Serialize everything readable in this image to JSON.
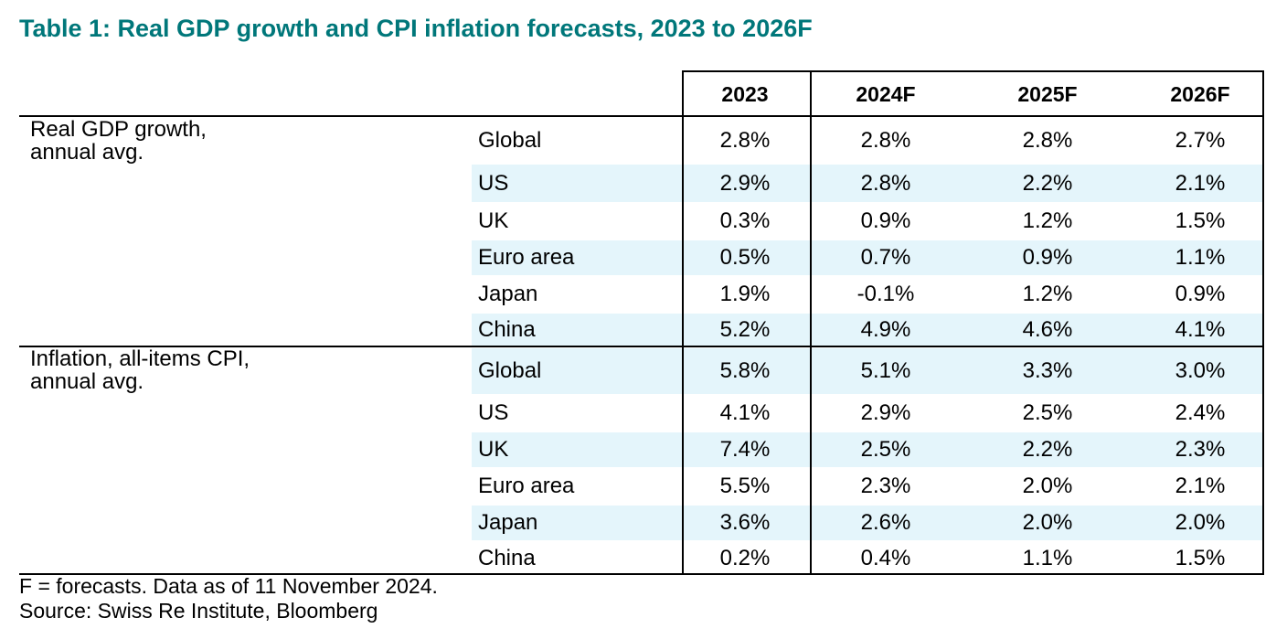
{
  "title": "Table 1: Real GDP growth and CPI inflation forecasts, 2023 to 2026F",
  "chart_data": {
    "type": "table",
    "columns": [
      "2023",
      "2024F",
      "2025F",
      "2026F"
    ],
    "groups": [
      {
        "label_line1": "Real GDP growth,",
        "label_line2": "annual avg.",
        "rows": [
          {
            "name": "Global",
            "values": [
              "2.8%",
              "2.8%",
              "2.8%",
              "2.7%"
            ]
          },
          {
            "name": "US",
            "values": [
              "2.9%",
              "2.8%",
              "2.2%",
              "2.1%"
            ]
          },
          {
            "name": "UK",
            "values": [
              "0.3%",
              "0.9%",
              "1.2%",
              "1.5%"
            ]
          },
          {
            "name": "Euro area",
            "values": [
              "0.5%",
              "0.7%",
              "0.9%",
              "1.1%"
            ]
          },
          {
            "name": "Japan",
            "values": [
              "1.9%",
              "-0.1%",
              "1.2%",
              "0.9%"
            ]
          },
          {
            "name": "China",
            "values": [
              "5.2%",
              "4.9%",
              "4.6%",
              "4.1%"
            ]
          }
        ]
      },
      {
        "label_line1": "Inflation, all-items CPI,",
        "label_line2": "annual avg.",
        "rows": [
          {
            "name": "Global",
            "values": [
              "5.8%",
              "5.1%",
              "3.3%",
              "3.0%"
            ]
          },
          {
            "name": "US",
            "values": [
              "4.1%",
              "2.9%",
              "2.5%",
              "2.4%"
            ]
          },
          {
            "name": "UK",
            "values": [
              "7.4%",
              "2.5%",
              "2.2%",
              "2.3%"
            ]
          },
          {
            "name": "Euro area",
            "values": [
              "5.5%",
              "2.3%",
              "2.0%",
              "2.1%"
            ]
          },
          {
            "name": "Japan",
            "values": [
              "3.6%",
              "2.6%",
              "2.0%",
              "2.0%"
            ]
          },
          {
            "name": "China",
            "values": [
              "0.2%",
              "0.4%",
              "1.1%",
              "1.5%"
            ]
          }
        ]
      }
    ]
  },
  "footnote": "F = forecasts. Data as of 11 November 2024.",
  "source": "Source: Swiss Re Institute, Bloomberg",
  "colors": {
    "title": "#00777a",
    "stripe": "#e4f5fb",
    "rule": "#000000"
  }
}
